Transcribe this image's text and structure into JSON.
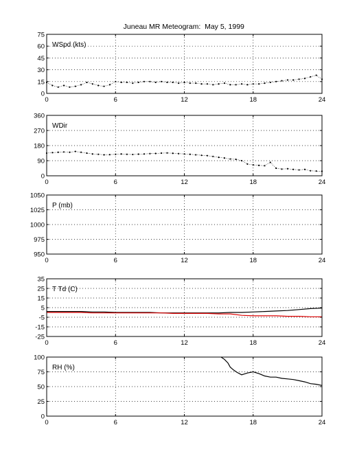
{
  "figure": {
    "title_station": "Juneau MR Meteogram:",
    "title_date": "May  5, 1999"
  },
  "chart_data": [
    {
      "type": "scatter",
      "label": "WSpd (kts)",
      "ylim": [
        0,
        75
      ],
      "yticks": [
        "0",
        "15",
        "30",
        "45",
        "60",
        "75"
      ],
      "xlim": [
        0,
        24
      ],
      "xticks": [
        "0",
        "6",
        "12",
        "18",
        "24"
      ],
      "grid": true,
      "series": [
        {
          "color": "#000000",
          "style": "dots",
          "x": [
            0,
            0.5,
            1,
            1.5,
            2,
            2.5,
            3,
            3.5,
            4,
            4.5,
            5,
            5.5,
            6,
            6.5,
            7,
            7.5,
            8,
            8.5,
            9,
            9.5,
            10,
            10.5,
            11,
            11.5,
            12,
            12.5,
            13,
            13.5,
            14,
            14.5,
            15,
            15.5,
            16,
            16.5,
            17,
            17.5,
            18,
            18.5,
            19,
            19.5,
            20,
            20.5,
            21,
            21.5,
            22,
            22.5,
            23,
            23.5,
            24
          ],
          "y": [
            14,
            10,
            8,
            10,
            8,
            9,
            11,
            14,
            12,
            10,
            9,
            11,
            15,
            14,
            14,
            13,
            14,
            15,
            15,
            14,
            15,
            14,
            14,
            13,
            14,
            13,
            13,
            12,
            12,
            11,
            12,
            13,
            11,
            11,
            12,
            11,
            12,
            12,
            13,
            14,
            15,
            16,
            17,
            17,
            18,
            19,
            21,
            23,
            18
          ]
        }
      ]
    },
    {
      "type": "scatter",
      "label": "WDir",
      "ylim": [
        0,
        360
      ],
      "yticks": [
        "0",
        "90",
        "180",
        "270",
        "360"
      ],
      "xlim": [
        0,
        24
      ],
      "xticks": [
        "0",
        "6",
        "12",
        "18",
        "24"
      ],
      "grid": true,
      "series": [
        {
          "color": "#000000",
          "style": "dots",
          "x": [
            0,
            0.5,
            1,
            1.5,
            2,
            2.5,
            3,
            3.5,
            4,
            4.5,
            5,
            5.5,
            6,
            6.5,
            7,
            7.5,
            8,
            8.5,
            9,
            9.5,
            10,
            10.5,
            11,
            11.5,
            12,
            12.5,
            13,
            13.5,
            14,
            14.5,
            15,
            15.5,
            16,
            16.5,
            17,
            17.5,
            18,
            18.5,
            19,
            19.5,
            20,
            20.5,
            21,
            21.5,
            22,
            22.5,
            23,
            23.5,
            24
          ],
          "y": [
            135,
            138,
            140,
            142,
            140,
            145,
            140,
            135,
            130,
            128,
            125,
            126,
            128,
            130,
            128,
            127,
            129,
            130,
            132,
            133,
            135,
            136,
            134,
            132,
            130,
            128,
            125,
            122,
            120,
            115,
            110,
            106,
            100,
            98,
            90,
            70,
            65,
            62,
            60,
            80,
            45,
            40,
            42,
            38,
            35,
            38,
            30,
            28,
            27
          ]
        }
      ]
    },
    {
      "type": "line",
      "label": "P (mb)",
      "ylim": [
        950,
        1050
      ],
      "yticks": [
        "950",
        "975",
        "1000",
        "1025",
        "1050"
      ],
      "xlim": [
        0,
        24
      ],
      "xticks": [
        "0",
        "6",
        "12",
        "18",
        "24"
      ],
      "grid": true,
      "series": []
    },
    {
      "type": "line",
      "label": "T Td (C)",
      "ylim": [
        -25,
        35
      ],
      "yticks": [
        "-25",
        "-15",
        "-5",
        "5",
        "15",
        "25",
        "35"
      ],
      "xlim": [
        0,
        24
      ],
      "xticks": [
        "0",
        "6",
        "12",
        "18",
        "24"
      ],
      "grid": true,
      "series": [
        {
          "color": "#000000",
          "style": "line",
          "x": [
            0,
            1,
            2,
            3,
            4,
            5,
            6,
            7,
            8,
            9,
            10,
            11,
            12,
            13,
            14,
            15,
            16,
            17,
            18,
            19,
            20,
            21,
            22,
            23,
            24
          ],
          "y": [
            1,
            1,
            1,
            1,
            0.5,
            0.5,
            0,
            0,
            0,
            0,
            -0.5,
            -0.5,
            -0.5,
            -0.5,
            -0.5,
            -0.5,
            0,
            0,
            0.5,
            1,
            1.5,
            2,
            3,
            4,
            4.5
          ]
        },
        {
          "color": "#dd0000",
          "style": "line",
          "x": [
            0,
            1,
            2,
            3,
            4,
            5,
            6,
            7,
            8,
            9,
            10,
            11,
            12,
            13,
            14,
            15,
            16,
            17,
            18,
            19,
            20,
            21,
            22,
            23,
            24
          ],
          "y": [
            0,
            0,
            0,
            0,
            -0.5,
            -0.5,
            -0.5,
            -0.5,
            -0.5,
            -0.5,
            -0.5,
            -1,
            -1,
            -1,
            -1,
            -1.5,
            -1.5,
            -3,
            -3.5,
            -3.5,
            -3.5,
            -4,
            -4,
            -4.5,
            -4.5
          ]
        }
      ]
    },
    {
      "type": "line",
      "label": "RH (%)",
      "ylim": [
        0,
        100
      ],
      "yticks": [
        "0",
        "25",
        "50",
        "75",
        "100"
      ],
      "xlim": [
        0,
        24
      ],
      "xticks": [
        "0",
        "6",
        "12",
        "18",
        "24"
      ],
      "grid": true,
      "series": [
        {
          "color": "#000000",
          "style": "line",
          "x": [
            15.2,
            15.5,
            15.8,
            16,
            16.3,
            16.6,
            17,
            17.5,
            18,
            18.5,
            19,
            19.5,
            20,
            20.5,
            21,
            21.5,
            22,
            22.5,
            23,
            23.5,
            24
          ],
          "y": [
            100,
            96,
            90,
            83,
            78,
            74,
            70,
            73,
            75,
            72,
            68,
            66,
            66,
            64,
            63,
            62,
            60,
            58,
            55,
            54,
            52
          ]
        }
      ]
    }
  ]
}
